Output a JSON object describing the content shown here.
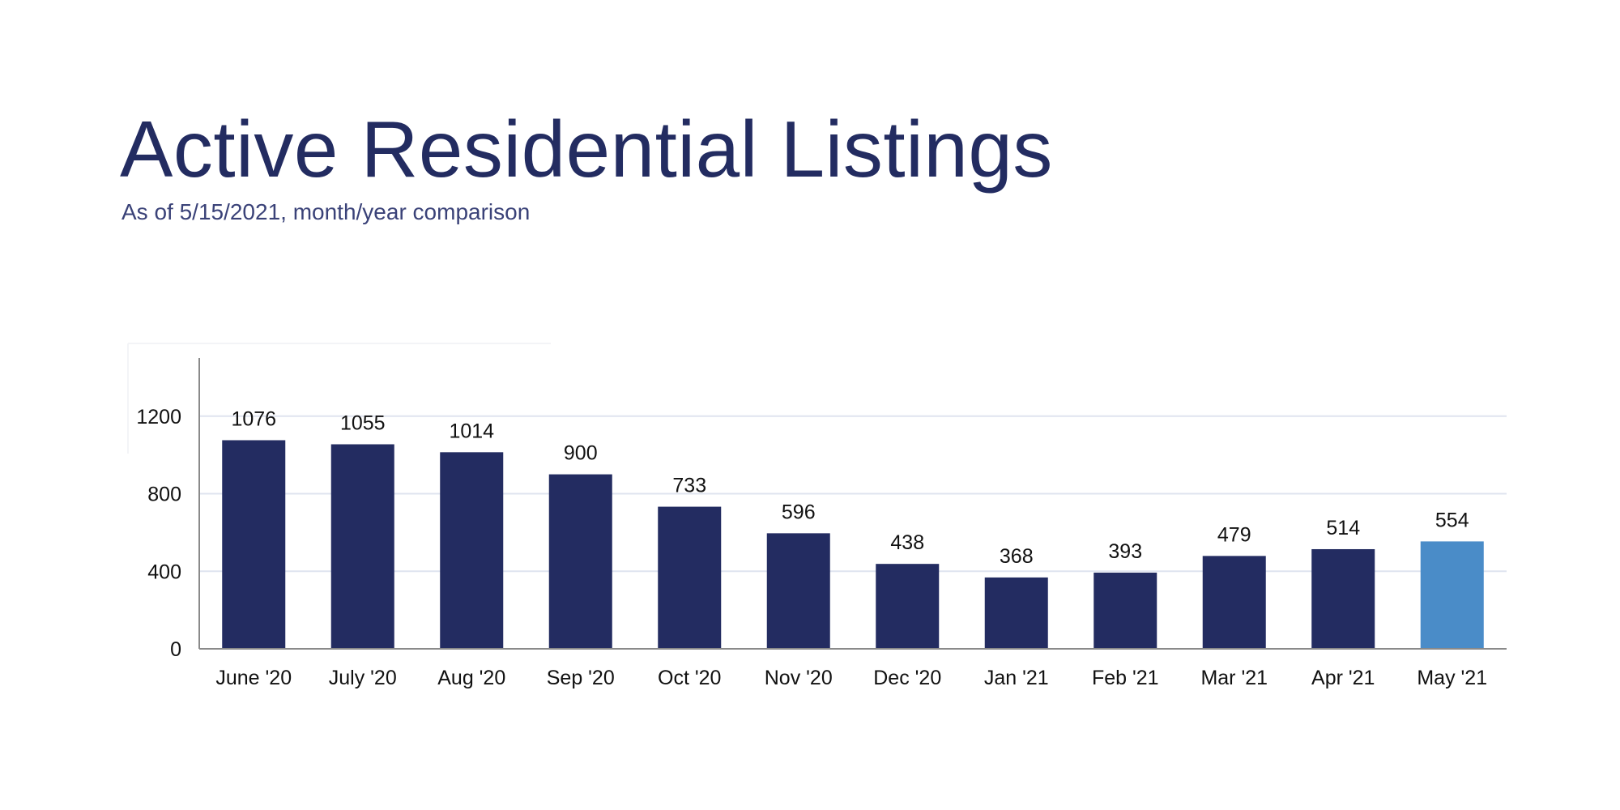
{
  "chart_data": {
    "type": "bar",
    "title": "Active Residential Listings",
    "subtitle": "As of 5/15/2021, month/year comparison",
    "xlabel": "",
    "ylabel": "",
    "categories": [
      "June '20",
      "July '20",
      "Aug '20",
      "Sep '20",
      "Oct '20",
      "Nov '20",
      "Dec '20",
      "Jan '21",
      "Feb '21",
      "Mar '21",
      "Apr '21",
      "May '21"
    ],
    "values": [
      1076,
      1055,
      1014,
      900,
      733,
      596,
      438,
      368,
      393,
      479,
      514,
      554
    ],
    "ylim": [
      0,
      1500
    ],
    "yticks": [
      0,
      400,
      800,
      1200
    ],
    "grid": true,
    "data_labels": true,
    "colors": {
      "bar": "#232c61",
      "highlight": "#4a8cc8",
      "title": "#232c61",
      "grid": "#dfe4ef"
    },
    "highlight_category": "May '21"
  }
}
